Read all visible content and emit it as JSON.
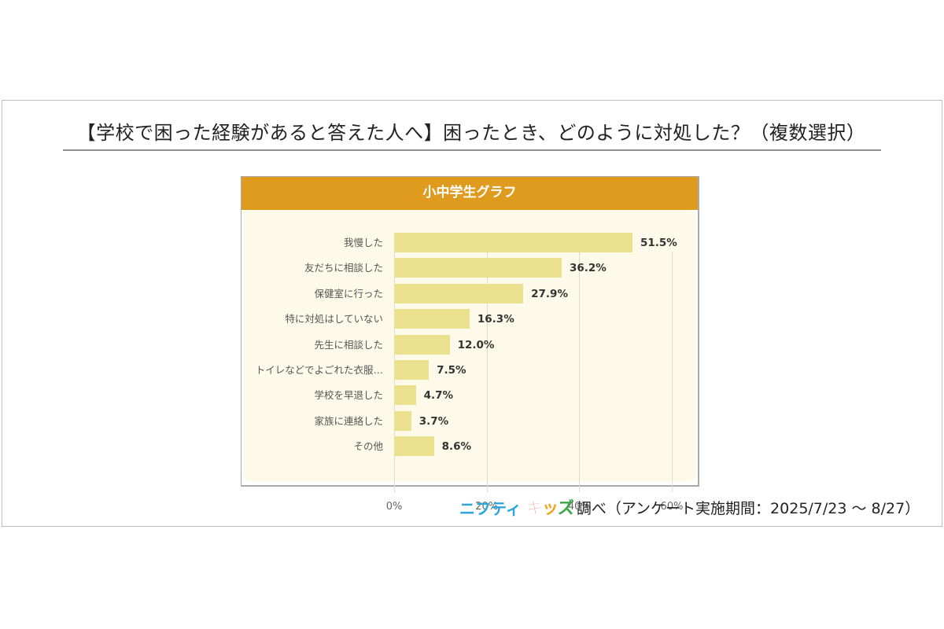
{
  "title": "【学校で困った経験があると答えた人へ】困ったとき、どのように対処した？（複数選択）",
  "chart": {
    "header": "小中学生グラフ",
    "bar_color": "#ebe08e",
    "header_color": "#df9b1e",
    "ticks": [
      "0%",
      "20%",
      "40%",
      "60%"
    ]
  },
  "footer": {
    "logo_nifty": "ニフティ",
    "logo_kids": [
      "キ",
      "ッ",
      "ズ"
    ],
    "text": "調べ（アンケート実施期間：2025/7/23 ～ 8/27）"
  },
  "chart_data": {
    "type": "bar",
    "orientation": "horizontal",
    "title": "小中学生グラフ",
    "categories": [
      "我慢した",
      "友だちに相談した",
      "保健室に行った",
      "特に対処はしていない",
      "先生に相談した",
      "トイレなどでよごれた衣服…",
      "学校を早退した",
      "家族に連絡した",
      "その他"
    ],
    "values": [
      51.5,
      36.2,
      27.9,
      16.3,
      12.0,
      7.5,
      4.7,
      3.7,
      8.6
    ],
    "value_labels": [
      "51.5%",
      "36.2%",
      "27.9%",
      "16.3%",
      "12.0%",
      "7.5%",
      "4.7%",
      "3.7%",
      "8.6%"
    ],
    "xlabel": "",
    "ylabel": "",
    "xlim": [
      0,
      60
    ],
    "xticks": [
      "0%",
      "20%",
      "40%",
      "60%"
    ],
    "grid": true,
    "legend": null
  }
}
